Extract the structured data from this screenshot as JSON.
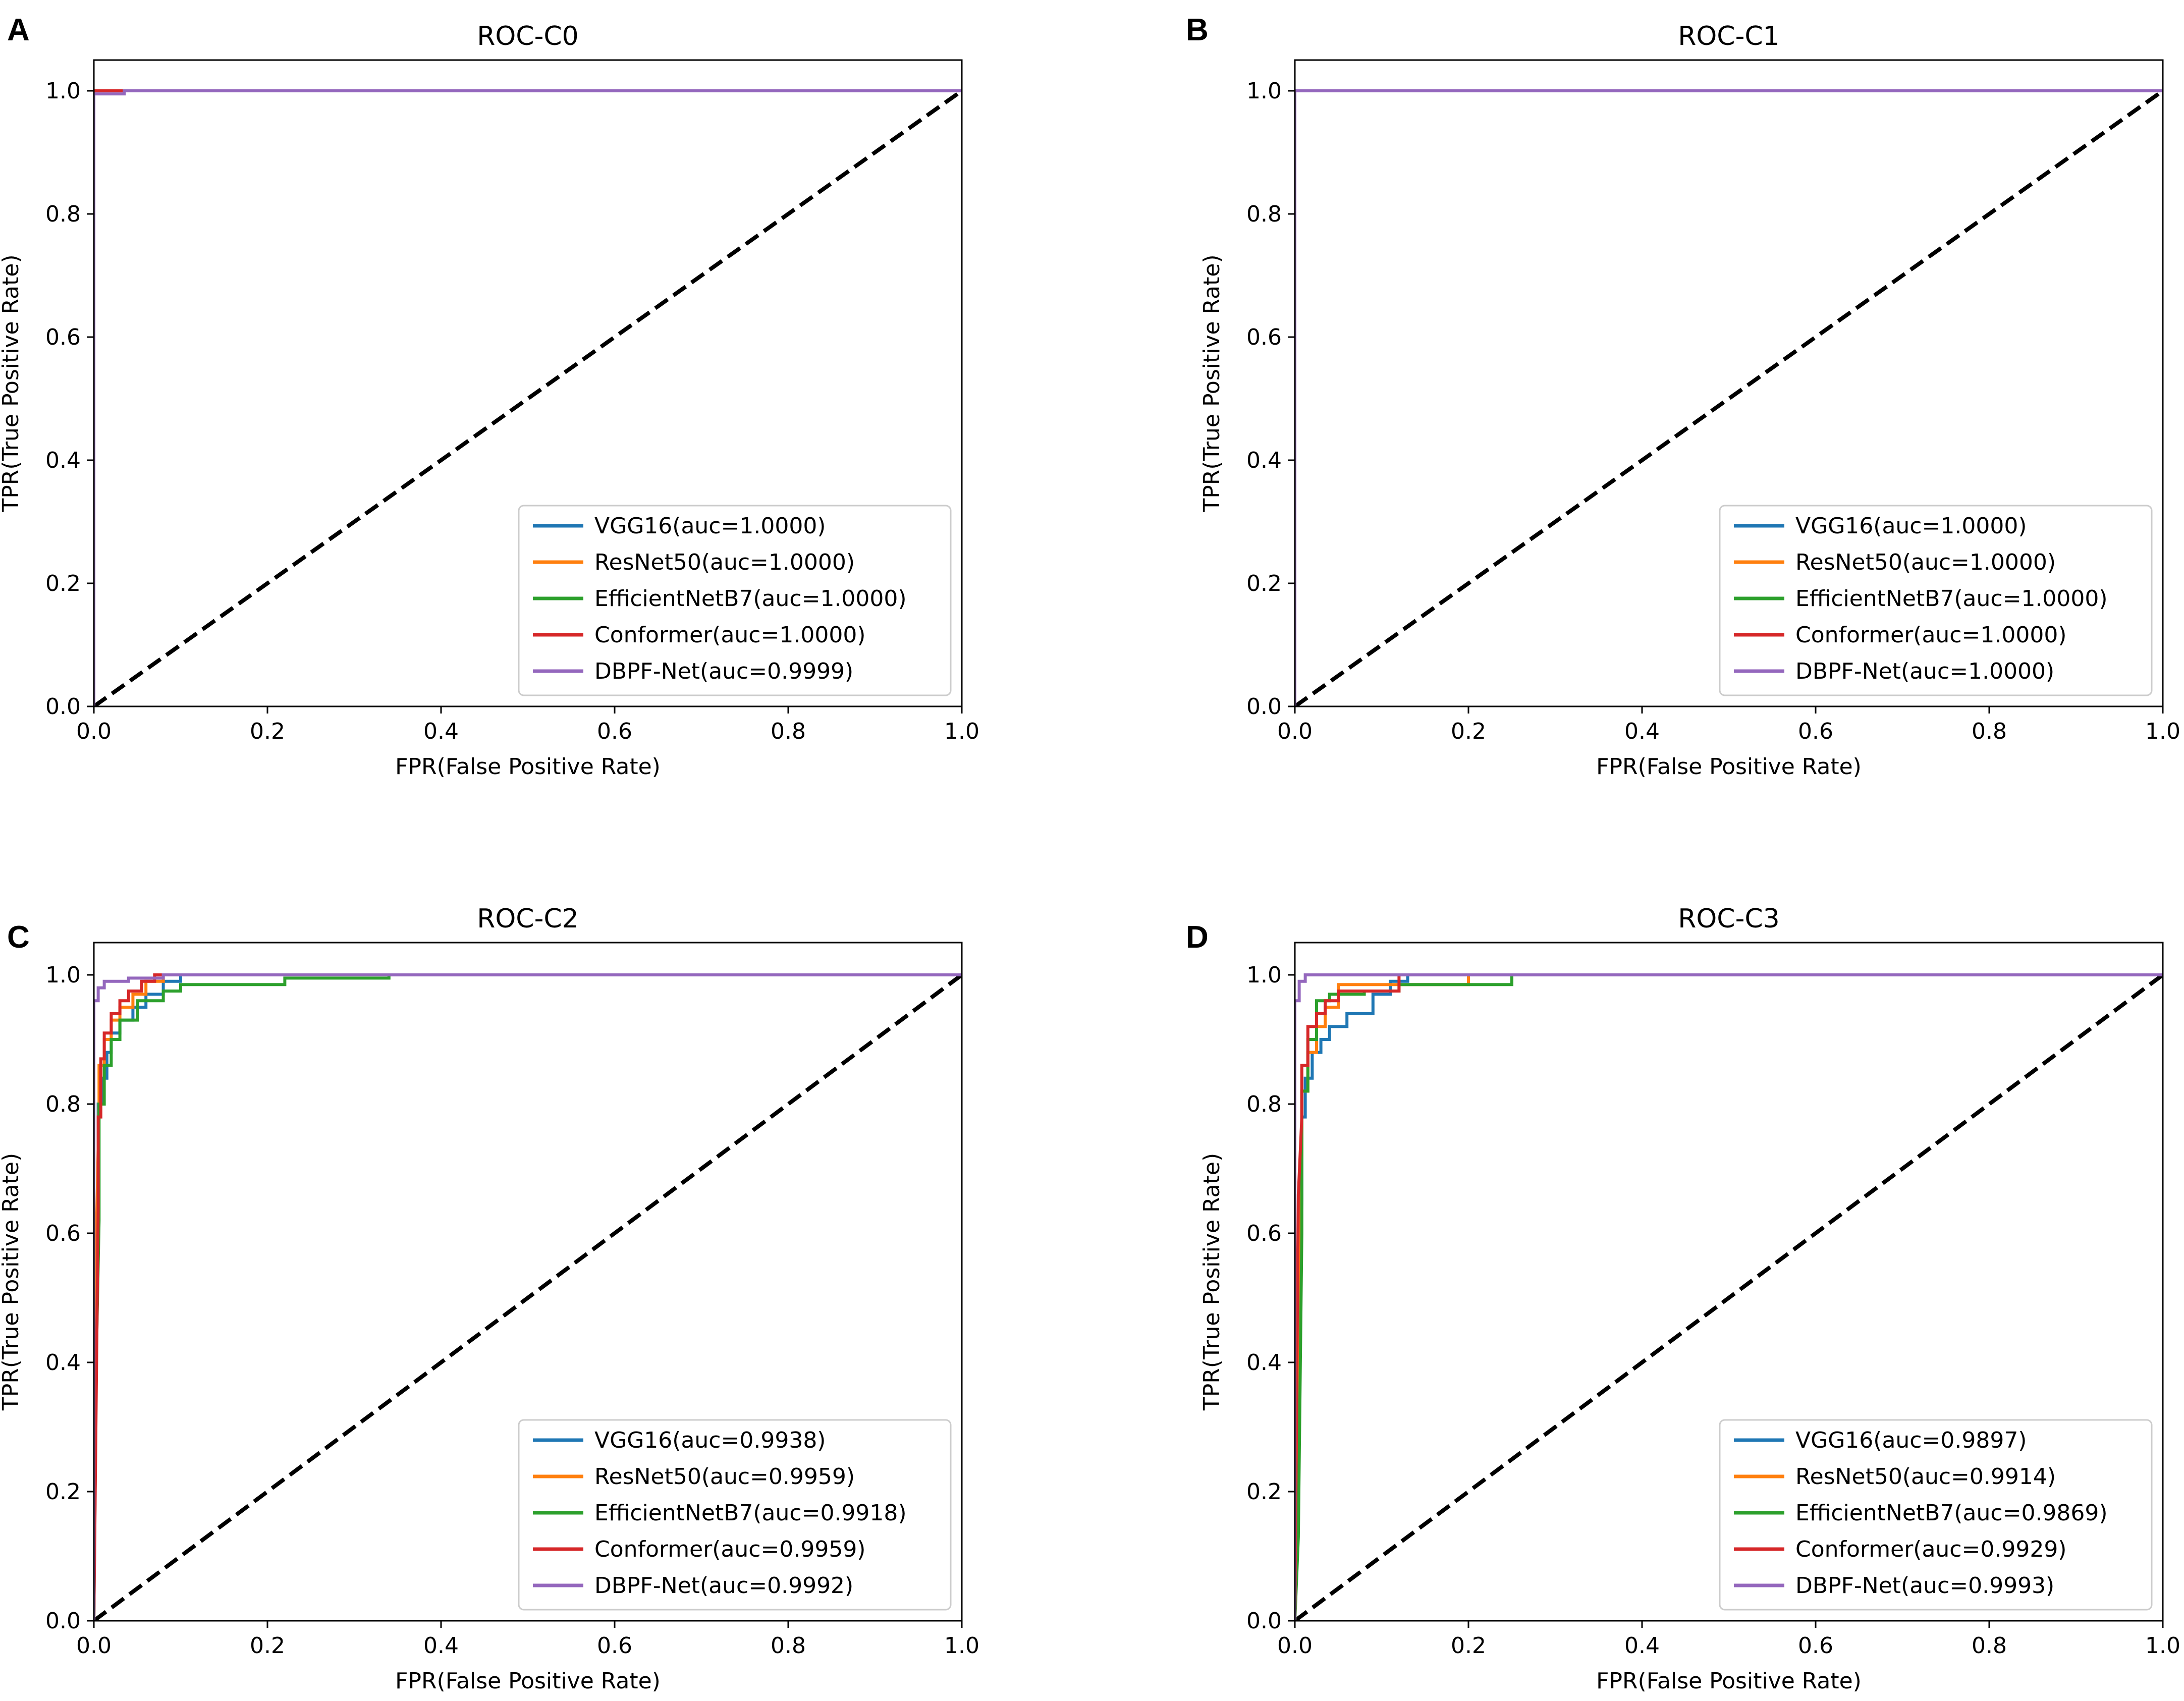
{
  "figure": {
    "panels": [
      {
        "letter": "A",
        "title": "ROC-C0",
        "xlabel": "FPR(False Positive Rate)",
        "ylabel": "TPR(True Positive Rate)",
        "xticks": [
          "0.0",
          "0.2",
          "0.4",
          "0.6",
          "0.8",
          "1.0"
        ],
        "yticks": [
          "0.0",
          "0.2",
          "0.4",
          "0.6",
          "0.8",
          "1.0"
        ],
        "legend": [
          {
            "label": "VGG16(auc=1.0000)",
            "color": "#1f77b4"
          },
          {
            "label": "ResNet50(auc=1.0000)",
            "color": "#ff7f0e"
          },
          {
            "label": "EfficientNetB7(auc=1.0000)",
            "color": "#2ca02c"
          },
          {
            "label": "Conformer(auc=1.0000)",
            "color": "#d62728"
          },
          {
            "label": "DBPF-Net(auc=0.9999)",
            "color": "#9467bd"
          }
        ]
      },
      {
        "letter": "B",
        "title": "ROC-C1",
        "xlabel": "FPR(False Positive Rate)",
        "ylabel": "TPR(True Positive Rate)",
        "xticks": [
          "0.0",
          "0.2",
          "0.4",
          "0.6",
          "0.8",
          "1.0"
        ],
        "yticks": [
          "0.0",
          "0.2",
          "0.4",
          "0.6",
          "0.8",
          "1.0"
        ],
        "legend": [
          {
            "label": "VGG16(auc=1.0000)",
            "color": "#1f77b4"
          },
          {
            "label": "ResNet50(auc=1.0000)",
            "color": "#ff7f0e"
          },
          {
            "label": "EfficientNetB7(auc=1.0000)",
            "color": "#2ca02c"
          },
          {
            "label": "Conformer(auc=1.0000)",
            "color": "#d62728"
          },
          {
            "label": "DBPF-Net(auc=1.0000)",
            "color": "#9467bd"
          }
        ]
      },
      {
        "letter": "C",
        "title": "ROC-C2",
        "xlabel": "FPR(False Positive Rate)",
        "ylabel": "TPR(True Positive Rate)",
        "xticks": [
          "0.0",
          "0.2",
          "0.4",
          "0.6",
          "0.8",
          "1.0"
        ],
        "yticks": [
          "0.0",
          "0.2",
          "0.4",
          "0.6",
          "0.8",
          "1.0"
        ],
        "legend": [
          {
            "label": "VGG16(auc=0.9938)",
            "color": "#1f77b4"
          },
          {
            "label": "ResNet50(auc=0.9959)",
            "color": "#ff7f0e"
          },
          {
            "label": "EfficientNetB7(auc=0.9918)",
            "color": "#2ca02c"
          },
          {
            "label": "Conformer(auc=0.9959)",
            "color": "#d62728"
          },
          {
            "label": "DBPF-Net(auc=0.9992)",
            "color": "#9467bd"
          }
        ]
      },
      {
        "letter": "D",
        "title": "ROC-C3",
        "xlabel": "FPR(False Positive Rate)",
        "ylabel": "TPR(True Positive Rate)",
        "xticks": [
          "0.0",
          "0.2",
          "0.4",
          "0.6",
          "0.8",
          "1.0"
        ],
        "yticks": [
          "0.0",
          "0.2",
          "0.4",
          "0.6",
          "0.8",
          "1.0"
        ],
        "legend": [
          {
            "label": "VGG16(auc=0.9897)",
            "color": "#1f77b4"
          },
          {
            "label": "ResNet50(auc=0.9914)",
            "color": "#ff7f0e"
          },
          {
            "label": "EfficientNetB7(auc=0.9869)",
            "color": "#2ca02c"
          },
          {
            "label": "Conformer(auc=0.9929)",
            "color": "#d62728"
          },
          {
            "label": "DBPF-Net(auc=0.9993)",
            "color": "#9467bd"
          }
        ]
      }
    ]
  },
  "chart_data": [
    {
      "type": "line",
      "title": "ROC-C0",
      "xlabel": "FPR(False Positive Rate)",
      "ylabel": "TPR(True Positive Rate)",
      "xlim": [
        0,
        1
      ],
      "ylim": [
        0,
        1.05
      ],
      "legend_position": "bottom-right",
      "reference_line": {
        "x": [
          0,
          1
        ],
        "y": [
          0,
          1
        ],
        "style": "dashed",
        "color": "#000000"
      },
      "series": [
        {
          "name": "VGG16(auc=1.0000)",
          "color": "#1f77b4",
          "x": [
            0,
            0,
            1
          ],
          "y": [
            0,
            1,
            1
          ]
        },
        {
          "name": "ResNet50(auc=1.0000)",
          "color": "#ff7f0e",
          "x": [
            0,
            0,
            1
          ],
          "y": [
            0,
            1,
            1
          ]
        },
        {
          "name": "EfficientNetB7(auc=1.0000)",
          "color": "#2ca02c",
          "x": [
            0,
            0,
            1
          ],
          "y": [
            0,
            1,
            1
          ]
        },
        {
          "name": "Conformer(auc=1.0000)",
          "color": "#d62728",
          "x": [
            0,
            0,
            0.03,
            1
          ],
          "y": [
            0,
            1,
            1,
            1
          ]
        },
        {
          "name": "DBPF-Net(auc=0.9999)",
          "color": "#9467bd",
          "x": [
            0,
            0,
            0.035,
            0.035,
            1
          ],
          "y": [
            0,
            0.995,
            0.995,
            1,
            1
          ]
        }
      ]
    },
    {
      "type": "line",
      "title": "ROC-C1",
      "xlabel": "FPR(False Positive Rate)",
      "ylabel": "TPR(True Positive Rate)",
      "xlim": [
        0,
        1
      ],
      "ylim": [
        0,
        1.05
      ],
      "legend_position": "bottom-right",
      "reference_line": {
        "x": [
          0,
          1
        ],
        "y": [
          0,
          1
        ],
        "style": "dashed",
        "color": "#000000"
      },
      "series": [
        {
          "name": "VGG16(auc=1.0000)",
          "color": "#1f77b4",
          "x": [
            0,
            0,
            1
          ],
          "y": [
            0,
            1,
            1
          ]
        },
        {
          "name": "ResNet50(auc=1.0000)",
          "color": "#ff7f0e",
          "x": [
            0,
            0,
            1
          ],
          "y": [
            0,
            1,
            1
          ]
        },
        {
          "name": "EfficientNetB7(auc=1.0000)",
          "color": "#2ca02c",
          "x": [
            0,
            0,
            1
          ],
          "y": [
            0,
            1,
            1
          ]
        },
        {
          "name": "Conformer(auc=1.0000)",
          "color": "#d62728",
          "x": [
            0,
            0,
            1
          ],
          "y": [
            0,
            1,
            1
          ]
        },
        {
          "name": "DBPF-Net(auc=1.0000)",
          "color": "#9467bd",
          "x": [
            0,
            0,
            1
          ],
          "y": [
            0,
            1,
            1
          ]
        }
      ]
    },
    {
      "type": "line",
      "title": "ROC-C2",
      "xlabel": "FPR(False Positive Rate)",
      "ylabel": "TPR(True Positive Rate)",
      "xlim": [
        0,
        1
      ],
      "ylim": [
        0,
        1.05
      ],
      "legend_position": "bottom-right",
      "reference_line": {
        "x": [
          0,
          1
        ],
        "y": [
          0,
          1
        ],
        "style": "dashed",
        "color": "#000000"
      },
      "series": [
        {
          "name": "VGG16(auc=0.9938)",
          "color": "#1f77b4",
          "x": [
            0,
            0.002,
            0.005,
            0.005,
            0.01,
            0.01,
            0.015,
            0.015,
            0.02,
            0.02,
            0.03,
            0.03,
            0.045,
            0.045,
            0.06,
            0.06,
            0.08,
            0.08,
            0.1,
            0.1,
            1
          ],
          "y": [
            0,
            0.45,
            0.72,
            0.8,
            0.8,
            0.84,
            0.84,
            0.88,
            0.88,
            0.91,
            0.91,
            0.93,
            0.93,
            0.95,
            0.95,
            0.97,
            0.97,
            0.99,
            0.99,
            1,
            1
          ]
        },
        {
          "name": "ResNet50(auc=0.9959)",
          "color": "#ff7f0e",
          "x": [
            0,
            0.003,
            0.006,
            0.006,
            0.012,
            0.012,
            0.02,
            0.02,
            0.03,
            0.03,
            0.045,
            0.045,
            0.06,
            0.06,
            0.08,
            0.08,
            1
          ],
          "y": [
            0,
            0.6,
            0.8,
            0.86,
            0.86,
            0.9,
            0.9,
            0.93,
            0.93,
            0.95,
            0.95,
            0.97,
            0.97,
            0.99,
            0.99,
            1,
            1
          ]
        },
        {
          "name": "EfficientNetB7(auc=0.9918)",
          "color": "#2ca02c",
          "x": [
            0,
            0.003,
            0.006,
            0.006,
            0.012,
            0.012,
            0.02,
            0.02,
            0.03,
            0.03,
            0.05,
            0.05,
            0.08,
            0.08,
            0.1,
            0.1,
            0.22,
            0.22,
            0.34,
            0.34,
            1
          ],
          "y": [
            0,
            0.42,
            0.62,
            0.8,
            0.8,
            0.86,
            0.86,
            0.9,
            0.9,
            0.93,
            0.93,
            0.96,
            0.96,
            0.975,
            0.975,
            0.985,
            0.985,
            0.995,
            0.995,
            1,
            1
          ]
        },
        {
          "name": "Conformer(auc=0.9959)",
          "color": "#d62728",
          "x": [
            0,
            0.005,
            0.005,
            0.008,
            0.008,
            0.012,
            0.012,
            0.02,
            0.02,
            0.03,
            0.03,
            0.04,
            0.04,
            0.055,
            0.055,
            0.07,
            0.07,
            1
          ],
          "y": [
            0,
            0.64,
            0.78,
            0.78,
            0.87,
            0.87,
            0.91,
            0.91,
            0.94,
            0.94,
            0.96,
            0.96,
            0.975,
            0.975,
            0.99,
            0.99,
            1,
            1
          ]
        },
        {
          "name": "DBPF-Net(auc=0.9992)",
          "color": "#9467bd",
          "x": [
            0,
            0,
            0.005,
            0.005,
            0.012,
            0.012,
            0.04,
            0.04,
            0.08,
            0.08,
            1
          ],
          "y": [
            0,
            0.96,
            0.96,
            0.98,
            0.98,
            0.99,
            0.99,
            0.995,
            0.995,
            1,
            1
          ]
        }
      ]
    },
    {
      "type": "line",
      "title": "ROC-C3",
      "xlabel": "FPR(False Positive Rate)",
      "ylabel": "TPR(True Positive Rate)",
      "xlim": [
        0,
        1
      ],
      "ylim": [
        0,
        1.05
      ],
      "legend_position": "bottom-right",
      "reference_line": {
        "x": [
          0,
          1
        ],
        "y": [
          0,
          1
        ],
        "style": "dashed",
        "color": "#000000"
      },
      "series": [
        {
          "name": "VGG16(auc=0.9897)",
          "color": "#1f77b4",
          "x": [
            0,
            0.004,
            0.008,
            0.008,
            0.012,
            0.012,
            0.02,
            0.02,
            0.03,
            0.03,
            0.04,
            0.04,
            0.06,
            0.06,
            0.09,
            0.09,
            0.11,
            0.11,
            0.13,
            0.13,
            1
          ],
          "y": [
            0,
            0.35,
            0.65,
            0.78,
            0.78,
            0.84,
            0.84,
            0.88,
            0.88,
            0.9,
            0.9,
            0.92,
            0.92,
            0.94,
            0.94,
            0.97,
            0.97,
            0.99,
            0.99,
            1,
            1
          ]
        },
        {
          "name": "ResNet50(auc=0.9914)",
          "color": "#ff7f0e",
          "x": [
            0,
            0.004,
            0.008,
            0.008,
            0.015,
            0.015,
            0.025,
            0.025,
            0.035,
            0.035,
            0.05,
            0.05,
            0.2,
            0.2,
            1
          ],
          "y": [
            0,
            0.5,
            0.72,
            0.82,
            0.82,
            0.88,
            0.88,
            0.92,
            0.92,
            0.95,
            0.95,
            0.985,
            0.985,
            1,
            1
          ]
        },
        {
          "name": "EfficientNetB7(auc=0.9869)",
          "color": "#2ca02c",
          "x": [
            0,
            0.004,
            0.008,
            0.008,
            0.015,
            0.015,
            0.025,
            0.025,
            0.04,
            0.04,
            0.08,
            0.08,
            0.12,
            0.12,
            0.25,
            0.25,
            1
          ],
          "y": [
            0,
            0.13,
            0.6,
            0.82,
            0.82,
            0.9,
            0.9,
            0.96,
            0.96,
            0.97,
            0.97,
            0.975,
            0.975,
            0.985,
            0.985,
            1,
            1
          ]
        },
        {
          "name": "Conformer(auc=0.9929)",
          "color": "#d62728",
          "x": [
            0,
            0.004,
            0.008,
            0.008,
            0.015,
            0.015,
            0.025,
            0.025,
            0.035,
            0.035,
            0.05,
            0.05,
            0.12,
            0.12,
            1
          ],
          "y": [
            0,
            0.66,
            0.78,
            0.86,
            0.86,
            0.92,
            0.92,
            0.94,
            0.94,
            0.96,
            0.96,
            0.975,
            0.975,
            1,
            1
          ]
        },
        {
          "name": "DBPF-Net(auc=0.9993)",
          "color": "#9467bd",
          "x": [
            0,
            0,
            0.005,
            0.005,
            0.012,
            0.012,
            1
          ],
          "y": [
            0,
            0.96,
            0.96,
            0.99,
            0.99,
            1,
            1
          ]
        }
      ]
    }
  ]
}
